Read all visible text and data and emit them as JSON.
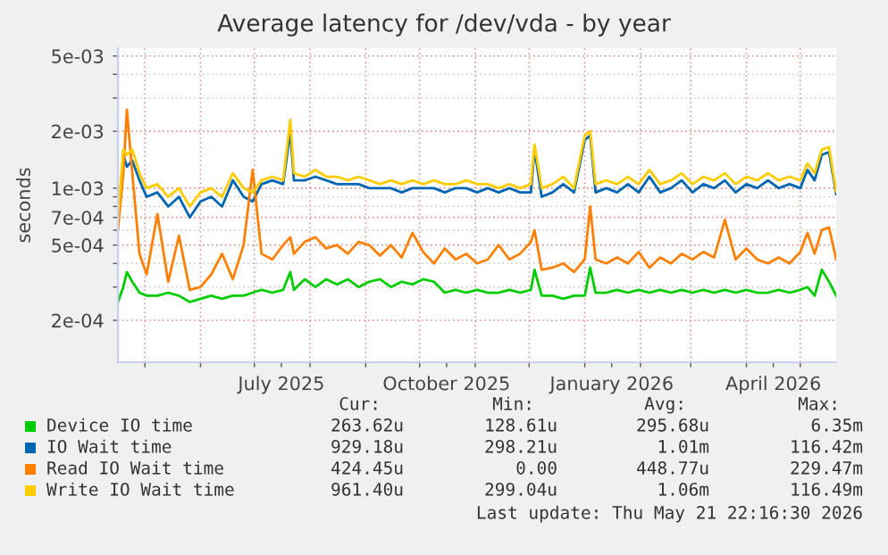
{
  "chart_data": {
    "type": "line",
    "title": "Average latency for /dev/vda - by year",
    "ylabel": "seconds",
    "log": "y",
    "x": [
      "2025-04-16",
      "2025-04-19",
      "2025-04-21",
      "2025-04-24",
      "2025-04-28",
      "2025-05-02",
      "2025-05-08",
      "2025-05-14",
      "2025-05-20",
      "2025-05-26",
      "2025-06-01",
      "2025-06-07",
      "2025-06-13",
      "2025-06-19",
      "2025-06-25",
      "2025-06-30",
      "2025-07-05",
      "2025-07-11",
      "2025-07-17",
      "2025-07-21",
      "2025-07-23",
      "2025-07-29",
      "2025-08-04",
      "2025-08-10",
      "2025-08-16",
      "2025-08-22",
      "2025-08-28",
      "2025-09-03",
      "2025-09-09",
      "2025-09-15",
      "2025-09-21",
      "2025-09-27",
      "2025-10-03",
      "2025-10-09",
      "2025-10-15",
      "2025-10-21",
      "2025-10-27",
      "2025-11-02",
      "2025-11-08",
      "2025-11-14",
      "2025-11-20",
      "2025-11-26",
      "2025-12-02",
      "2025-12-04",
      "2025-12-08",
      "2025-12-14",
      "2025-12-20",
      "2025-12-26",
      "2026-01-01",
      "2026-01-04",
      "2026-01-07",
      "2026-01-13",
      "2026-01-19",
      "2026-01-25",
      "2026-01-31",
      "2026-02-06",
      "2026-02-12",
      "2026-02-18",
      "2026-02-24",
      "2026-03-02",
      "2026-03-08",
      "2026-03-14",
      "2026-03-20",
      "2026-03-26",
      "2026-04-01",
      "2026-04-07",
      "2026-04-13",
      "2026-04-19",
      "2026-04-25",
      "2026-05-01",
      "2026-05-05",
      "2026-05-09",
      "2026-05-13",
      "2026-05-17",
      "2026-05-21"
    ],
    "series": [
      {
        "name": "Device IO time",
        "color": "#00cc00",
        "values": [
          0.00025,
          0.0003,
          0.00036,
          0.00032,
          0.00028,
          0.00027,
          0.00027,
          0.00028,
          0.00027,
          0.00025,
          0.00026,
          0.00027,
          0.00026,
          0.00027,
          0.00027,
          0.00028,
          0.00029,
          0.00028,
          0.00029,
          0.00036,
          0.00029,
          0.00033,
          0.0003,
          0.00033,
          0.00031,
          0.00033,
          0.0003,
          0.00032,
          0.00033,
          0.0003,
          0.00032,
          0.00031,
          0.00033,
          0.00032,
          0.00028,
          0.00029,
          0.00028,
          0.00029,
          0.00028,
          0.00028,
          0.00029,
          0.00028,
          0.00029,
          0.00037,
          0.00027,
          0.00027,
          0.00026,
          0.00027,
          0.00027,
          0.00038,
          0.00028,
          0.00028,
          0.00029,
          0.00028,
          0.00029,
          0.00028,
          0.00029,
          0.00028,
          0.00029,
          0.00028,
          0.00029,
          0.00028,
          0.00029,
          0.00028,
          0.00029,
          0.00028,
          0.00028,
          0.00029,
          0.00028,
          0.00029,
          0.0003,
          0.00027,
          0.00037,
          0.00032,
          0.00027
        ]
      },
      {
        "name": "IO Wait time",
        "color": "#0066b3",
        "values": [
          0.00065,
          0.0015,
          0.0013,
          0.0014,
          0.0011,
          0.0009,
          0.00095,
          0.0008,
          0.0009,
          0.0007,
          0.00085,
          0.0009,
          0.0008,
          0.0011,
          0.0009,
          0.00085,
          0.00105,
          0.0011,
          0.00105,
          0.002,
          0.0011,
          0.0011,
          0.00115,
          0.0011,
          0.00105,
          0.00105,
          0.00105,
          0.001,
          0.001,
          0.001,
          0.00095,
          0.001,
          0.001,
          0.001,
          0.00095,
          0.001,
          0.001,
          0.00095,
          0.001,
          0.00095,
          0.001,
          0.00095,
          0.00095,
          0.0016,
          0.0009,
          0.00095,
          0.00105,
          0.00095,
          0.0018,
          0.0019,
          0.00095,
          0.001,
          0.00095,
          0.00105,
          0.00095,
          0.00115,
          0.00095,
          0.001,
          0.0011,
          0.00095,
          0.00105,
          0.001,
          0.0011,
          0.00095,
          0.00105,
          0.001,
          0.0011,
          0.001,
          0.00105,
          0.001,
          0.00125,
          0.0011,
          0.0015,
          0.00155,
          0.00093
        ]
      },
      {
        "name": "Read IO Wait time",
        "color": "#ff8000",
        "values": [
          0.0006,
          0.0012,
          0.0026,
          0.0012,
          0.00045,
          0.00035,
          0.00073,
          0.00032,
          0.00056,
          0.00029,
          0.0003,
          0.00035,
          0.00045,
          0.00033,
          0.0005,
          0.00125,
          0.00045,
          0.00042,
          0.0005,
          0.00055,
          0.00045,
          0.00052,
          0.00055,
          0.00048,
          0.0005,
          0.00045,
          0.00052,
          0.0005,
          0.00044,
          0.0005,
          0.00043,
          0.00058,
          0.00046,
          0.0004,
          0.00048,
          0.00042,
          0.00045,
          0.0004,
          0.00042,
          0.0005,
          0.00042,
          0.00045,
          0.00052,
          0.0006,
          0.00037,
          0.00038,
          0.0004,
          0.00036,
          0.00042,
          0.0008,
          0.00042,
          0.0004,
          0.00043,
          0.0004,
          0.00046,
          0.00038,
          0.00043,
          0.0004,
          0.00045,
          0.00042,
          0.00046,
          0.00043,
          0.00068,
          0.00042,
          0.00048,
          0.00042,
          0.0004,
          0.00043,
          0.0004,
          0.00046,
          0.00058,
          0.00045,
          0.0006,
          0.00062,
          0.00042
        ]
      },
      {
        "name": "Write IO Wait time",
        "color": "#ffcc00",
        "values": [
          0.0007,
          0.0016,
          0.0015,
          0.0016,
          0.0012,
          0.001,
          0.00105,
          0.0009,
          0.001,
          0.0008,
          0.00095,
          0.001,
          0.0009,
          0.0012,
          0.001,
          0.00095,
          0.0011,
          0.00115,
          0.0011,
          0.0023,
          0.0012,
          0.00115,
          0.00125,
          0.00115,
          0.00115,
          0.0011,
          0.00115,
          0.0011,
          0.00105,
          0.0011,
          0.00105,
          0.0011,
          0.00105,
          0.0011,
          0.00105,
          0.00105,
          0.0011,
          0.00105,
          0.00105,
          0.001,
          0.00105,
          0.001,
          0.00105,
          0.0017,
          0.001,
          0.00105,
          0.00115,
          0.001,
          0.0019,
          0.002,
          0.00105,
          0.0011,
          0.00105,
          0.00115,
          0.00105,
          0.00125,
          0.00105,
          0.0011,
          0.0012,
          0.00105,
          0.00115,
          0.0011,
          0.0012,
          0.00105,
          0.00115,
          0.0011,
          0.0012,
          0.0011,
          0.00115,
          0.0011,
          0.00135,
          0.0012,
          0.0016,
          0.00165,
          0.00096
        ]
      }
    ],
    "xlim": [
      "2025-04-16",
      "2026-05-21"
    ],
    "xticks": [
      {
        "value": "2025-05-01",
        "label": null
      },
      {
        "value": "2025-06-01",
        "label": null
      },
      {
        "value": "2025-07-01",
        "label": null
      },
      {
        "value": "2025-07-16",
        "label": "July 2025"
      },
      {
        "value": "2025-08-01",
        "label": null
      },
      {
        "value": "2025-09-01",
        "label": null
      },
      {
        "value": "2025-10-01",
        "label": null
      },
      {
        "value": "2025-10-16",
        "label": "October 2025"
      },
      {
        "value": "2025-11-01",
        "label": null
      },
      {
        "value": "2025-12-01",
        "label": null
      },
      {
        "value": "2026-01-01",
        "label": null
      },
      {
        "value": "2026-01-16",
        "label": "January 2026"
      },
      {
        "value": "2026-02-01",
        "label": null
      },
      {
        "value": "2026-03-01",
        "label": null
      },
      {
        "value": "2026-04-01",
        "label": null
      },
      {
        "value": "2026-04-16",
        "label": "April 2026"
      },
      {
        "value": "2026-05-01",
        "label": null
      }
    ],
    "ylim": [
      0.00012,
      0.0055
    ],
    "yticks": [
      {
        "value": 0.0002,
        "label": "2e-04"
      },
      {
        "value": 0.0003,
        "label": null
      },
      {
        "value": 0.0004,
        "label": null
      },
      {
        "value": 0.0005,
        "label": "5e-04"
      },
      {
        "value": 0.0006,
        "label": null
      },
      {
        "value": 0.0007,
        "label": "7e-04"
      },
      {
        "value": 0.0008,
        "label": null
      },
      {
        "value": 0.0009,
        "label": null
      },
      {
        "value": 0.001,
        "label": "1e-03"
      },
      {
        "value": 0.002,
        "label": "2e-03"
      },
      {
        "value": 0.003,
        "label": null
      },
      {
        "value": 0.004,
        "label": null
      },
      {
        "value": 0.005,
        "label": "5e-03"
      }
    ],
    "grid": true,
    "legend": "bottom",
    "annotations": [
      "Cur:",
      "Min:",
      "Avg:",
      "Max:",
      "263.62u",
      "128.61u",
      "295.68u",
      "6.35m",
      "929.18u",
      "298.21u",
      "1.01m",
      "116.42m",
      "424.45u",
      "0.00",
      "448.77u",
      "229.47m",
      "961.40u",
      "299.04u",
      "1.06m",
      "116.49m",
      "Last update: Thu May 21 22:16:30 2026"
    ]
  }
}
